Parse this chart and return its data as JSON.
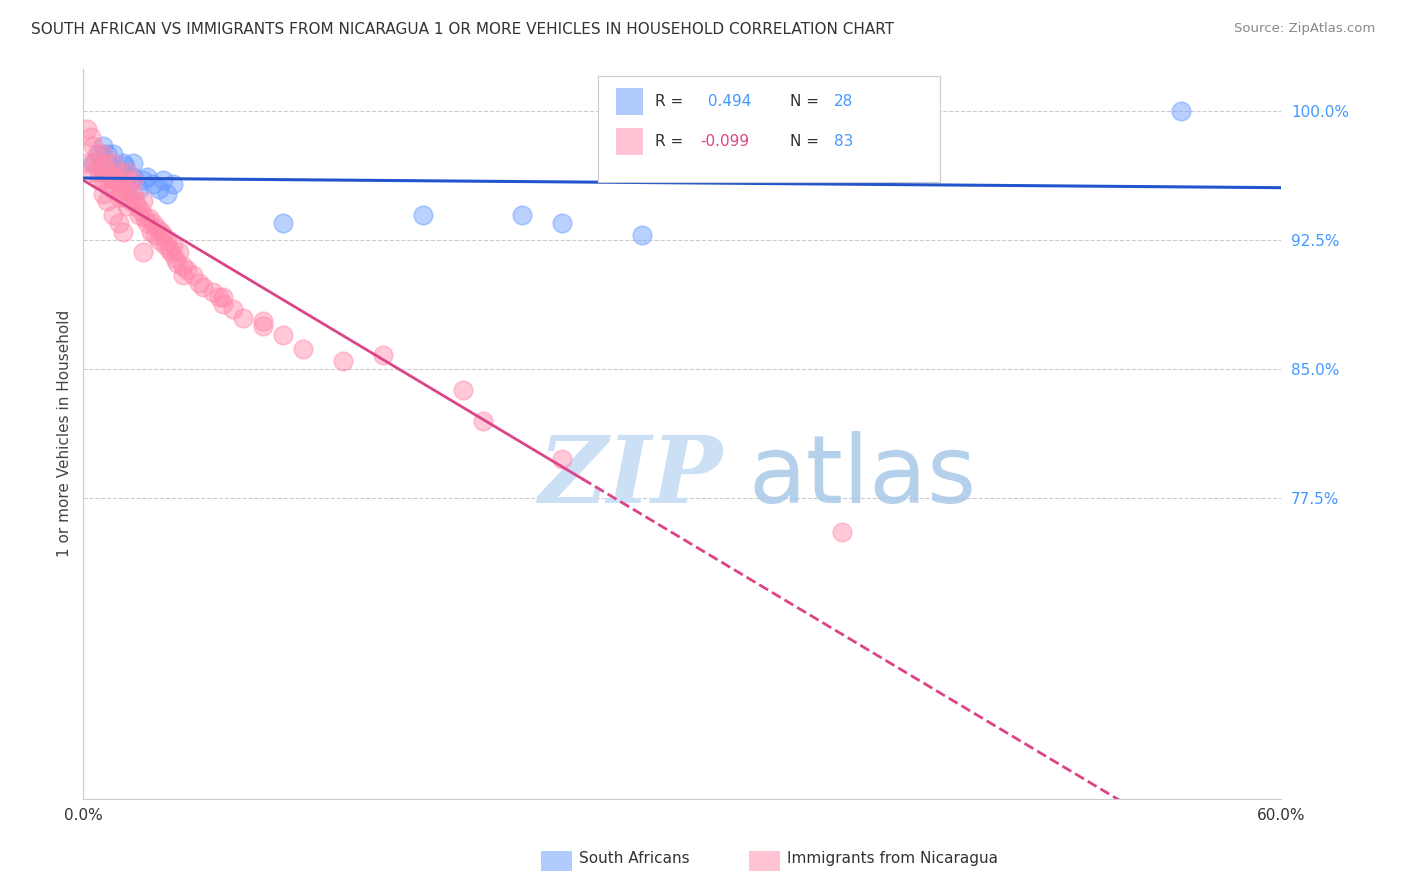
{
  "title": "SOUTH AFRICAN VS IMMIGRANTS FROM NICARAGUA 1 OR MORE VEHICLES IN HOUSEHOLD CORRELATION CHART",
  "source": "Source: ZipAtlas.com",
  "ylabel": "1 or more Vehicles in Household",
  "xlim": [
    0.0,
    0.6
  ],
  "ylim": [
    0.6,
    1.025
  ],
  "xticks": [
    0.0,
    0.1,
    0.2,
    0.3,
    0.4,
    0.5,
    0.6
  ],
  "xticklabels": [
    "0.0%",
    "",
    "",
    "",
    "",
    "",
    "60.0%"
  ],
  "yticks_right": [
    1.0,
    0.925,
    0.85,
    0.775
  ],
  "ytick_right_labels": [
    "100.0%",
    "92.5%",
    "85.0%",
    "77.5%"
  ],
  "grid_color": "#cccccc",
  "bg": "#ffffff",
  "blue_color": "#6699ff",
  "pink_color": "#ff88aa",
  "blue_line_color": "#2255cc",
  "pink_line_color": "#dd4488",
  "watermark_zip": "ZIP",
  "watermark_atlas": "atlas",
  "watermark_color": "#cce0f5",
  "sa_x": [
    0.005,
    0.008,
    0.01,
    0.01,
    0.012,
    0.013,
    0.015,
    0.016,
    0.018,
    0.02,
    0.021,
    0.022,
    0.025,
    0.025,
    0.028,
    0.03,
    0.032,
    0.035,
    0.038,
    0.04,
    0.042,
    0.045,
    0.1,
    0.17,
    0.22,
    0.55,
    0.24,
    0.28
  ],
  "sa_y": [
    0.97,
    0.975,
    0.98,
    0.965,
    0.975,
    0.968,
    0.975,
    0.96,
    0.965,
    0.97,
    0.968,
    0.955,
    0.962,
    0.97,
    0.955,
    0.96,
    0.962,
    0.958,
    0.955,
    0.96,
    0.952,
    0.958,
    0.935,
    0.94,
    0.94,
    1.0,
    0.935,
    0.928
  ],
  "nic_x": [
    0.002,
    0.004,
    0.005,
    0.006,
    0.007,
    0.008,
    0.009,
    0.01,
    0.01,
    0.011,
    0.012,
    0.013,
    0.014,
    0.015,
    0.015,
    0.016,
    0.017,
    0.018,
    0.018,
    0.019,
    0.02,
    0.02,
    0.021,
    0.022,
    0.022,
    0.023,
    0.024,
    0.025,
    0.025,
    0.026,
    0.027,
    0.028,
    0.029,
    0.03,
    0.031,
    0.032,
    0.033,
    0.034,
    0.035,
    0.036,
    0.037,
    0.038,
    0.039,
    0.04,
    0.041,
    0.042,
    0.043,
    0.044,
    0.045,
    0.046,
    0.047,
    0.048,
    0.05,
    0.052,
    0.055,
    0.058,
    0.06,
    0.065,
    0.068,
    0.07,
    0.075,
    0.08,
    0.09,
    0.1,
    0.11,
    0.13,
    0.002,
    0.005,
    0.008,
    0.01,
    0.012,
    0.015,
    0.018,
    0.02,
    0.03,
    0.05,
    0.07,
    0.09,
    0.15,
    0.19,
    0.2,
    0.24,
    0.38
  ],
  "nic_y": [
    0.99,
    0.985,
    0.98,
    0.97,
    0.975,
    0.965,
    0.968,
    0.975,
    0.96,
    0.97,
    0.965,
    0.958,
    0.962,
    0.97,
    0.955,
    0.962,
    0.96,
    0.965,
    0.95,
    0.955,
    0.96,
    0.95,
    0.955,
    0.965,
    0.945,
    0.958,
    0.948,
    0.952,
    0.96,
    0.948,
    0.945,
    0.94,
    0.942,
    0.948,
    0.938,
    0.935,
    0.938,
    0.93,
    0.935,
    0.928,
    0.932,
    0.925,
    0.93,
    0.928,
    0.922,
    0.925,
    0.92,
    0.918,
    0.922,
    0.915,
    0.912,
    0.918,
    0.91,
    0.908,
    0.905,
    0.9,
    0.898,
    0.895,
    0.892,
    0.888,
    0.885,
    0.88,
    0.875,
    0.87,
    0.862,
    0.855,
    0.97,
    0.965,
    0.96,
    0.952,
    0.948,
    0.94,
    0.935,
    0.93,
    0.918,
    0.905,
    0.892,
    0.878,
    0.858,
    0.838,
    0.82,
    0.798,
    0.755
  ]
}
